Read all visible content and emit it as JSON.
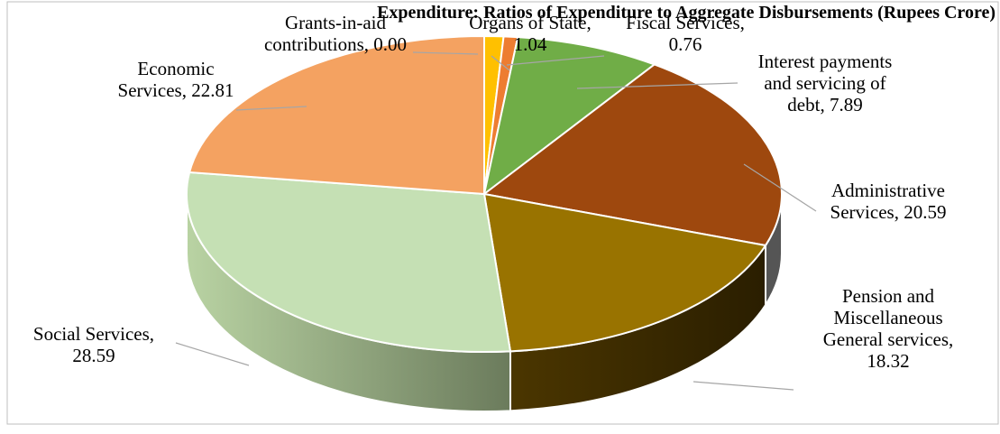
{
  "chart_data": {
    "type": "pie",
    "title": "",
    "units": "percent",
    "slices": [
      {
        "label": "Grants-in-aid contributions",
        "value": 0.0,
        "color": "#E46C0A"
      },
      {
        "label": "Organs of State",
        "value": 1.04,
        "color": "#FFC000"
      },
      {
        "label": "Fiscal Services",
        "value": 0.76,
        "color": "#ED7D31"
      },
      {
        "label": "Interest payments and servicing of debt",
        "value": 7.89,
        "color": "#70AD47"
      },
      {
        "label": "Administrative Services",
        "value": 20.59,
        "color": "#9E480E"
      },
      {
        "label": "Pension and Miscellaneous General services",
        "value": 18.32,
        "color": "#997300"
      },
      {
        "label": "Social Services",
        "value": 28.59,
        "color": "#C5E0B4"
      },
      {
        "label": "Economic Services",
        "value": 22.81,
        "color": "#F4A261"
      }
    ],
    "data_labels": [
      {
        "lines": [
          "Grants-in-aid",
          "contributions, 0.00"
        ]
      },
      {
        "lines": [
          "Organs of State,",
          "1.04"
        ]
      },
      {
        "lines": [
          "Fiscal Services,",
          "0.76"
        ]
      },
      {
        "lines": [
          "Interest payments",
          "and servicing of",
          "debt, 7.89"
        ]
      },
      {
        "lines": [
          "Administrative",
          "Services, 20.59"
        ]
      },
      {
        "lines": [
          "Pension and",
          "Miscellaneous",
          "General services,",
          "18.32"
        ]
      },
      {
        "lines": [
          "Social Services,",
          "28.59"
        ]
      },
      {
        "lines": [
          "Economic",
          "Services, 22.81"
        ]
      }
    ],
    "title_fragment": "Expenditure: Ratios of Expenditure to Aggregate Disbursements (Rupees Crore)",
    "three_d": true
  }
}
